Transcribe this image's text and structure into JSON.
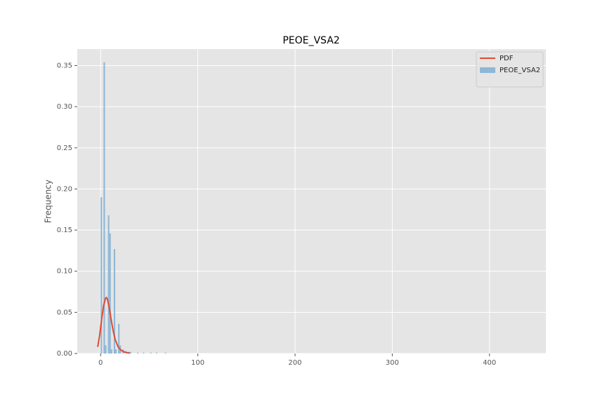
{
  "chart_data": {
    "type": "histogram",
    "title": "PEOE_VSA2",
    "ylabel": "Frequency",
    "xlim": [
      -24,
      458
    ],
    "ylim": [
      0,
      0.37
    ],
    "xticks": [
      0,
      100,
      200,
      300,
      400
    ],
    "yticks": [
      {
        "value": 0,
        "label": "0.00"
      },
      {
        "value": 0.05,
        "label": "0.05"
      },
      {
        "value": 0.1,
        "label": "0.10"
      },
      {
        "value": 0.15,
        "label": "0.15"
      },
      {
        "value": 0.2,
        "label": "0.20"
      },
      {
        "value": 0.25,
        "label": "0.25"
      },
      {
        "value": 0.3,
        "label": "0.30"
      },
      {
        "value": 0.35,
        "label": "0.35"
      }
    ],
    "grid": true,
    "legend": "upper right",
    "series": [
      {
        "name": "PDF",
        "type": "line",
        "color": "#E24A33",
        "x": [
          -3,
          -1,
          1,
          3,
          5,
          6,
          7,
          9,
          11,
          13,
          15,
          18,
          21,
          24,
          27,
          30
        ],
        "values": [
          0.008,
          0.022,
          0.041,
          0.058,
          0.067,
          0.068,
          0.066,
          0.055,
          0.04,
          0.027,
          0.017,
          0.008,
          0.004,
          0.002,
          0.001,
          0.0005
        ]
      },
      {
        "name": "PEOE_VSA2",
        "type": "histogram",
        "color": "#8fb7d6",
        "bins": [
          0,
          1.5,
          3,
          4.5,
          6,
          7.5,
          9,
          10.5,
          12,
          13.5,
          15,
          16.5,
          18,
          19.5,
          21,
          22.5,
          24,
          25.5,
          27,
          28.5,
          30,
          31.5,
          33,
          34.5,
          36,
          37.5,
          39,
          40.5,
          42,
          43.5,
          45,
          46.5,
          48,
          49.5,
          51,
          52.5,
          54,
          55.5,
          57,
          58.5,
          60,
          61.5,
          63,
          64.5,
          66,
          67.5,
          69
        ],
        "values": [
          0.19,
          0,
          0.354,
          0.01,
          0,
          0.168,
          0.146,
          0.005,
          0,
          0.127,
          0.005,
          0,
          0.036,
          0.01,
          0,
          0.005,
          0,
          0.003,
          0,
          0.002,
          0.002,
          0,
          0,
          0,
          0,
          0.001,
          0,
          0,
          0,
          0.001,
          0,
          0,
          0,
          0,
          0.001,
          0,
          0,
          0,
          0.001,
          0,
          0,
          0,
          0,
          0,
          0.001,
          0
        ]
      }
    ]
  }
}
